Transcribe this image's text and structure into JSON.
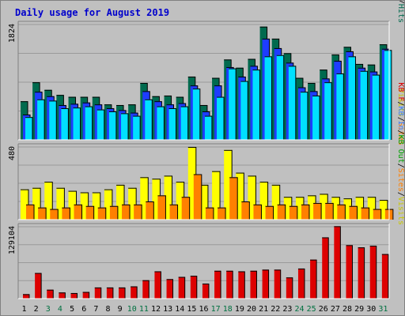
{
  "chart_data": {
    "title": "Daily usage for August 2019",
    "type": "bar",
    "categories": [
      "1",
      "2",
      "3",
      "4",
      "5",
      "6",
      "7",
      "8",
      "9",
      "10",
      "11",
      "12",
      "13",
      "14",
      "15",
      "16",
      "17",
      "18",
      "19",
      "20",
      "21",
      "22",
      "23",
      "24",
      "25",
      "26",
      "27",
      "28",
      "29",
      "30",
      "31"
    ],
    "weekend_days": [
      "3",
      "4",
      "10",
      "11",
      "17",
      "18",
      "24",
      "25",
      "31"
    ],
    "colors": {
      "hits": "#006a4e",
      "files": "#1e3cff",
      "pages": "#00e0ff",
      "visits": "#ffff00",
      "sites": "#ff8000",
      "kbout": "#00a000",
      "kbin": "#4080ff",
      "kbf": "#dd0000",
      "weekday_label": "#000000",
      "weekend_label": "#007040"
    },
    "panels": [
      {
        "name": "hits-files-pages",
        "ymax": 1824,
        "ymax_label": "1824",
        "legend": [
          {
            "text": "Pages",
            "color": "#00c8c8"
          },
          {
            "text": "/",
            "color": "#000000"
          },
          {
            "text": "Files",
            "color": "#4080ff"
          },
          {
            "text": "/",
            "color": "#000000"
          },
          {
            "text": "Hits",
            "color": "#006a4e"
          }
        ],
        "series": [
          {
            "name": "Hits",
            "color": "#006a4e",
            "values": [
              610,
              910,
              790,
              710,
              680,
              680,
              680,
              560,
              550,
              560,
              900,
              690,
              700,
              680,
              1000,
              550,
              980,
              1270,
              1140,
              1280,
              1790,
              1600,
              1370,
              980,
              900,
              1110,
              1350,
              1470,
              1200,
              1190,
              1510
            ]
          },
          {
            "name": "Files",
            "color": "#1e3cff",
            "values": [
              400,
              760,
              690,
              550,
              570,
              590,
              560,
              500,
              470,
              430,
              770,
              610,
              560,
              580,
              860,
              450,
              860,
              1150,
              1000,
              1170,
              1600,
              1450,
              1220,
              830,
              770,
              970,
              1250,
              1400,
              1140,
              1080,
              1440
            ]
          },
          {
            "name": "Pages",
            "color": "#00e0ff",
            "values": [
              360,
              640,
              620,
              500,
              510,
              530,
              480,
              450,
              420,
              380,
              640,
              530,
              500,
              530,
              810,
              380,
              680,
              1130,
              930,
              1110,
              1320,
              1340,
              1170,
              760,
              700,
              910,
              1050,
              1320,
              1090,
              1030,
              1420
            ]
          }
        ]
      },
      {
        "name": "visits-sites",
        "ymax": 480,
        "ymax_label": "480",
        "legend": [
          {
            "text": "Visits",
            "color": "#c8c800"
          },
          {
            "text": "/",
            "color": "#000000"
          },
          {
            "text": "Sites",
            "color": "#ff8000"
          }
        ],
        "series": [
          {
            "name": "Visits",
            "color": "#ffff00",
            "values": [
              200,
              210,
              250,
              210,
              190,
              180,
              180,
              200,
              230,
              210,
              280,
              270,
              290,
              250,
              480,
              230,
              320,
              460,
              310,
              290,
              250,
              230,
              150,
              150,
              160,
              170,
              150,
              140,
              150,
              150,
              130
            ]
          },
          {
            "name": "Sites",
            "color": "#ff8000",
            "values": [
              100,
              80,
              70,
              80,
              100,
              90,
              80,
              90,
              100,
              100,
              120,
              160,
              100,
              150,
              300,
              80,
              80,
              280,
              120,
              100,
              90,
              100,
              90,
              100,
              110,
              110,
              100,
              90,
              80,
              70,
              70
            ]
          }
        ]
      },
      {
        "name": "kbytes",
        "ymax": 129104,
        "ymax_label": "129104",
        "legend": [
          {
            "text": "KB F",
            "color": "#dd0000"
          },
          {
            "text": "/",
            "color": "#000000"
          },
          {
            "text": "KB In",
            "color": "#4080ff"
          },
          {
            "text": "/",
            "color": "#000000"
          },
          {
            "text": "KB Out",
            "color": "#00a000"
          },
          {
            "text": "/",
            "color": "#000000"
          },
          {
            "text": "Sites",
            "color": "#ff8000"
          },
          {
            "text": "/",
            "color": "#000000"
          },
          {
            "text": "Visits",
            "color": "#c8c800"
          }
        ],
        "series": [
          {
            "name": "KB F",
            "color": "#dd0000",
            "values": [
              8000,
              46000,
              16000,
              11000,
              10000,
              12000,
              20000,
              20000,
              20000,
              22000,
              33000,
              49000,
              35000,
              39000,
              41000,
              27000,
              50000,
              50000,
              49000,
              50000,
              52000,
              52000,
              38000,
              54000,
              70000,
              110000,
              130000,
              96000,
              92000,
              95000,
              80000
            ]
          }
        ]
      }
    ]
  }
}
